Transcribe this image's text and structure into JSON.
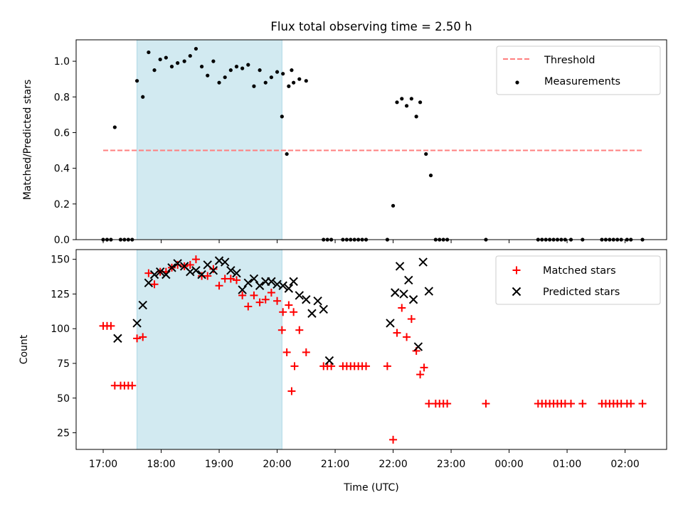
{
  "chart_data": {
    "title": "Flux total observing time = 2.50 h",
    "xlabel": "Time (UTC)",
    "x_ticks": [
      "17:00",
      "18:00",
      "19:00",
      "20:00",
      "21:00",
      "22:00",
      "23:00",
      "00:00",
      "01:00",
      "02:00"
    ],
    "xlim": [
      "16:32",
      "02:43"
    ],
    "observing_window": {
      "start": "17:35",
      "end": "20:05"
    },
    "colors": {
      "band": "#add8e6",
      "threshold": "#ff7f7f",
      "matched": "#ff0000",
      "predicted": "#000000",
      "measurements": "#000000"
    },
    "panels": [
      {
        "type": "scatter",
        "ylabel": "Matched/Predicted stars",
        "ylim": [
          0,
          1.12
        ],
        "y_ticks": [
          "0.0",
          "0.2",
          "0.4",
          "0.6",
          "0.8",
          "1.0"
        ],
        "legend_position": "upper right",
        "threshold": {
          "name": "Threshold",
          "y": 0.5,
          "x": [
            "17:00",
            "02:18"
          ]
        },
        "series": [
          {
            "name": "Measurements",
            "points": [
              [
                "17:00",
                0
              ],
              [
                "17:04",
                0
              ],
              [
                "17:08",
                0
              ],
              [
                "17:12",
                0.63
              ],
              [
                "17:18",
                0
              ],
              [
                "17:22",
                0
              ],
              [
                "17:26",
                0
              ],
              [
                "17:30",
                0
              ],
              [
                "17:35",
                0.89
              ],
              [
                "17:41",
                0.8
              ],
              [
                "17:47",
                1.05
              ],
              [
                "17:53",
                0.95
              ],
              [
                "17:59",
                1.01
              ],
              [
                "18:05",
                1.02
              ],
              [
                "18:11",
                0.97
              ],
              [
                "18:17",
                0.99
              ],
              [
                "18:24",
                1.0
              ],
              [
                "18:30",
                1.03
              ],
              [
                "18:36",
                1.07
              ],
              [
                "18:42",
                0.97
              ],
              [
                "18:48",
                0.92
              ],
              [
                "18:54",
                1.0
              ],
              [
                "19:00",
                0.88
              ],
              [
                "19:06",
                0.91
              ],
              [
                "19:12",
                0.95
              ],
              [
                "19:18",
                0.97
              ],
              [
                "19:24",
                0.96
              ],
              [
                "19:30",
                0.98
              ],
              [
                "19:36",
                0.86
              ],
              [
                "19:42",
                0.95
              ],
              [
                "19:48",
                0.88
              ],
              [
                "19:54",
                0.91
              ],
              [
                "20:00",
                0.94
              ],
              [
                "20:06",
                0.93
              ],
              [
                "20:12",
                0.86
              ],
              [
                "20:17",
                0.88
              ],
              [
                "20:23",
                0.9
              ],
              [
                "20:30",
                0.89
              ],
              [
                "20:05",
                0.69
              ],
              [
                "20:10",
                0.48
              ],
              [
                "20:15",
                0.95
              ],
              [
                "20:48",
                0
              ],
              [
                "20:52",
                0
              ],
              [
                "20:56",
                0
              ],
              [
                "21:08",
                0
              ],
              [
                "21:12",
                0
              ],
              [
                "21:16",
                0
              ],
              [
                "21:20",
                0
              ],
              [
                "21:24",
                0
              ],
              [
                "21:28",
                0
              ],
              [
                "21:32",
                0
              ],
              [
                "21:54",
                0
              ],
              [
                "22:00",
                0.19
              ],
              [
                "22:04",
                0.77
              ],
              [
                "22:09",
                0.79
              ],
              [
                "22:14",
                0.75
              ],
              [
                "22:19",
                0.79
              ],
              [
                "22:24",
                0.69
              ],
              [
                "22:28",
                0.77
              ],
              [
                "22:34",
                0.48
              ],
              [
                "22:39",
                0.36
              ],
              [
                "22:44",
                0
              ],
              [
                "22:48",
                0
              ],
              [
                "22:52",
                0
              ],
              [
                "22:56",
                0
              ],
              [
                "23:36",
                0
              ],
              [
                "00:30",
                0
              ],
              [
                "00:34",
                0
              ],
              [
                "00:38",
                0
              ],
              [
                "00:42",
                0
              ],
              [
                "00:46",
                0
              ],
              [
                "00:50",
                0
              ],
              [
                "00:54",
                0
              ],
              [
                "00:58",
                0
              ],
              [
                "01:04",
                0
              ],
              [
                "01:16",
                0
              ],
              [
                "01:36",
                0
              ],
              [
                "01:40",
                0
              ],
              [
                "01:44",
                0
              ],
              [
                "01:48",
                0
              ],
              [
                "01:52",
                0
              ],
              [
                "01:56",
                0
              ],
              [
                "02:02",
                0
              ],
              [
                "02:06",
                0
              ],
              [
                "02:18",
                0
              ]
            ]
          }
        ]
      },
      {
        "type": "scatter",
        "ylabel": "Count",
        "ylim": [
          13,
          157
        ],
        "y_ticks": [
          "25",
          "50",
          "75",
          "100",
          "125",
          "150"
        ],
        "legend_position": "upper right",
        "series": [
          {
            "name": "Matched stars",
            "points": [
              [
                "17:00",
                102
              ],
              [
                "17:04",
                102
              ],
              [
                "17:08",
                102
              ],
              [
                "17:12",
                59
              ],
              [
                "17:18",
                59
              ],
              [
                "17:22",
                59
              ],
              [
                "17:26",
                59
              ],
              [
                "17:30",
                59
              ],
              [
                "17:35",
                93
              ],
              [
                "17:41",
                94
              ],
              [
                "17:47",
                140
              ],
              [
                "17:53",
                132
              ],
              [
                "17:59",
                141
              ],
              [
                "18:05",
                141
              ],
              [
                "18:11",
                144
              ],
              [
                "18:17",
                146
              ],
              [
                "18:24",
                145
              ],
              [
                "18:30",
                146
              ],
              [
                "18:36",
                150
              ],
              [
                "18:42",
                138
              ],
              [
                "18:48",
                138
              ],
              [
                "18:54",
                143
              ],
              [
                "19:00",
                131
              ],
              [
                "19:06",
                136
              ],
              [
                "19:12",
                136
              ],
              [
                "19:18",
                135
              ],
              [
                "19:24",
                124
              ],
              [
                "19:30",
                116
              ],
              [
                "19:36",
                124
              ],
              [
                "19:42",
                119
              ],
              [
                "19:48",
                121
              ],
              [
                "19:54",
                126
              ],
              [
                "20:00",
                120
              ],
              [
                "20:06",
                112
              ],
              [
                "20:12",
                117
              ],
              [
                "20:17",
                112
              ],
              [
                "20:23",
                99
              ],
              [
                "20:30",
                83
              ],
              [
                "20:05",
                99
              ],
              [
                "20:10",
                83
              ],
              [
                "20:15",
                55
              ],
              [
                "20:18",
                73
              ],
              [
                "20:48",
                73
              ],
              [
                "20:52",
                73
              ],
              [
                "20:56",
                73
              ],
              [
                "21:08",
                73
              ],
              [
                "21:12",
                73
              ],
              [
                "21:16",
                73
              ],
              [
                "21:20",
                73
              ],
              [
                "21:24",
                73
              ],
              [
                "21:28",
                73
              ],
              [
                "21:32",
                73
              ],
              [
                "21:54",
                73
              ],
              [
                "22:00",
                20
              ],
              [
                "22:04",
                97
              ],
              [
                "22:09",
                115
              ],
              [
                "22:14",
                94
              ],
              [
                "22:19",
                107
              ],
              [
                "22:24",
                84
              ],
              [
                "22:28",
                67
              ],
              [
                "22:32",
                72
              ],
              [
                "22:37",
                46
              ],
              [
                "22:44",
                46
              ],
              [
                "22:48",
                46
              ],
              [
                "22:52",
                46
              ],
              [
                "22:56",
                46
              ],
              [
                "23:36",
                46
              ],
              [
                "00:30",
                46
              ],
              [
                "00:34",
                46
              ],
              [
                "00:38",
                46
              ],
              [
                "00:42",
                46
              ],
              [
                "00:46",
                46
              ],
              [
                "00:50",
                46
              ],
              [
                "00:54",
                46
              ],
              [
                "00:58",
                46
              ],
              [
                "01:04",
                46
              ],
              [
                "01:16",
                46
              ],
              [
                "01:36",
                46
              ],
              [
                "01:40",
                46
              ],
              [
                "01:44",
                46
              ],
              [
                "01:48",
                46
              ],
              [
                "01:52",
                46
              ],
              [
                "01:56",
                46
              ],
              [
                "02:02",
                46
              ],
              [
                "02:06",
                46
              ],
              [
                "02:18",
                46
              ]
            ]
          },
          {
            "name": "Predicted stars",
            "points": [
              [
                "17:15",
                93
              ],
              [
                "17:35",
                104
              ],
              [
                "17:41",
                117
              ],
              [
                "17:47",
                133
              ],
              [
                "17:53",
                139
              ],
              [
                "17:59",
                141
              ],
              [
                "18:05",
                139
              ],
              [
                "18:11",
                144
              ],
              [
                "18:17",
                147
              ],
              [
                "18:24",
                145
              ],
              [
                "18:30",
                141
              ],
              [
                "18:36",
                142
              ],
              [
                "18:42",
                139
              ],
              [
                "18:48",
                146
              ],
              [
                "18:54",
                142
              ],
              [
                "19:00",
                149
              ],
              [
                "19:06",
                148
              ],
              [
                "19:12",
                142
              ],
              [
                "19:18",
                140
              ],
              [
                "19:24",
                128
              ],
              [
                "19:30",
                133
              ],
              [
                "19:36",
                136
              ],
              [
                "19:42",
                131
              ],
              [
                "19:48",
                134
              ],
              [
                "19:54",
                134
              ],
              [
                "20:00",
                132
              ],
              [
                "20:06",
                131
              ],
              [
                "20:12",
                129
              ],
              [
                "20:17",
                134
              ],
              [
                "20:23",
                124
              ],
              [
                "20:30",
                121
              ],
              [
                "20:36",
                111
              ],
              [
                "20:42",
                120
              ],
              [
                "20:48",
                114
              ],
              [
                "20:54",
                77
              ],
              [
                "21:57",
                104
              ],
              [
                "22:02",
                126
              ],
              [
                "22:07",
                145
              ],
              [
                "22:11",
                125
              ],
              [
                "22:16",
                135
              ],
              [
                "22:21",
                121
              ],
              [
                "22:26",
                87
              ],
              [
                "22:31",
                148
              ],
              [
                "22:37",
                127
              ]
            ]
          }
        ]
      }
    ]
  }
}
